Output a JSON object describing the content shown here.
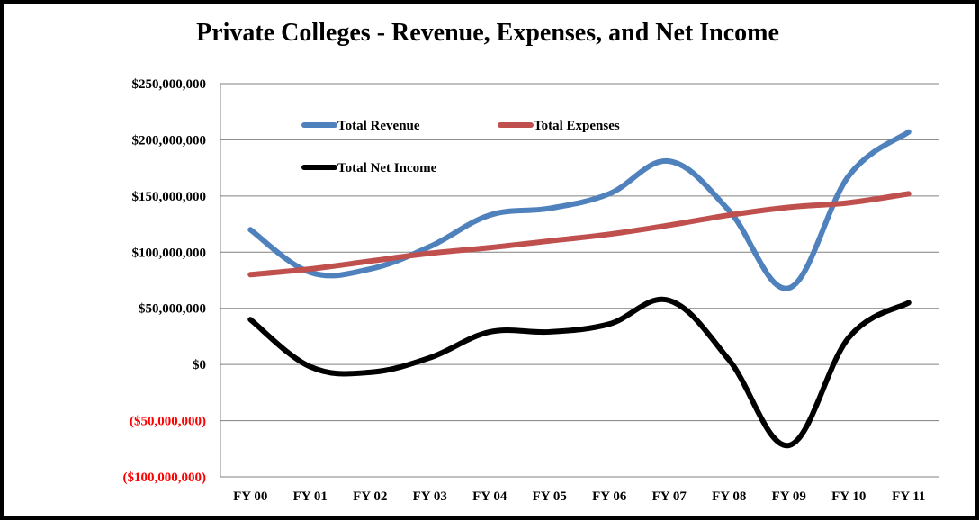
{
  "chart_data": {
    "type": "line",
    "title": "Private Colleges - Revenue, Expenses, and Net Income",
    "xlabel": "",
    "ylabel": "",
    "categories": [
      "FY 00",
      "FY 01",
      "FY 02",
      "FY 03",
      "FY 04",
      "FY 05",
      "FY 06",
      "FY 07",
      "FY 08",
      "FY 09",
      "FY 10",
      "FY 11"
    ],
    "y_ticks": [
      {
        "value": 250000000,
        "label": "$250,000,000"
      },
      {
        "value": 200000000,
        "label": "$200,000,000"
      },
      {
        "value": 150000000,
        "label": "$150,000,000"
      },
      {
        "value": 100000000,
        "label": "$100,000,000"
      },
      {
        "value": 50000000,
        "label": "$50,000,000"
      },
      {
        "value": 0,
        "label": "$0"
      },
      {
        "value": -50000000,
        "label": "($50,000,000)"
      },
      {
        "value": -100000000,
        "label": "($100,000,000)"
      }
    ],
    "ylim": [
      -100000000,
      250000000
    ],
    "grid": true,
    "legend_position": "top-left",
    "negative_label_color": "#ff0000",
    "series": [
      {
        "name": "Total Revenue",
        "color": "#4f81bd",
        "values": [
          120000000,
          82000000,
          85000000,
          105000000,
          133000000,
          139000000,
          152000000,
          181000000,
          137000000,
          68000000,
          168000000,
          207000000
        ]
      },
      {
        "name": "Total Expenses",
        "color": "#c0504d",
        "values": [
          80000000,
          85000000,
          92000000,
          99000000,
          104000000,
          110000000,
          116000000,
          124000000,
          133000000,
          140000000,
          144000000,
          152000000
        ]
      },
      {
        "name": "Total Net Income",
        "color": "#000000",
        "values": [
          40000000,
          -2000000,
          -7000000,
          6000000,
          29000000,
          29000000,
          36000000,
          57000000,
          4000000,
          -72000000,
          24000000,
          55000000
        ]
      }
    ]
  }
}
